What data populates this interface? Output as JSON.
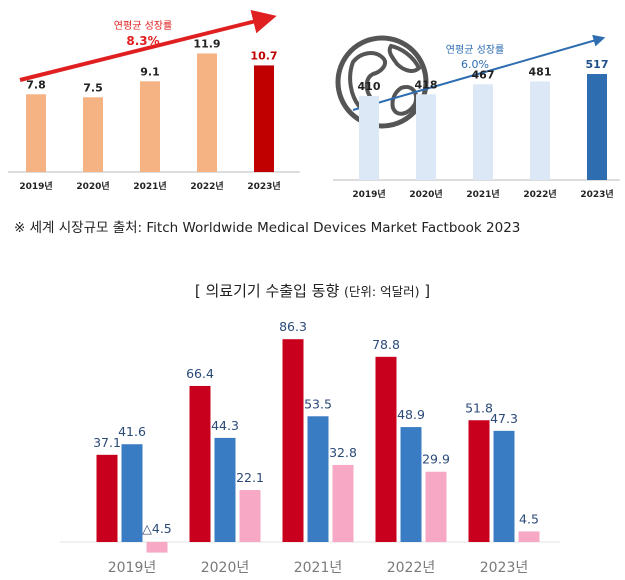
{
  "chart_data": [
    {
      "type": "bar",
      "categories": [
        "2019년",
        "2020년",
        "2021년",
        "2022년",
        "2023년"
      ],
      "values": [
        7.8,
        7.5,
        9.1,
        11.9,
        10.7
      ],
      "value_labels": [
        "7.8",
        "7.5",
        "9.1",
        "11.9",
        "10.7"
      ],
      "ylim": [
        0,
        13
      ],
      "colors": [
        "#f5b283",
        "#f5b283",
        "#f5b283",
        "#f5b283",
        "#c00000"
      ],
      "value_label_colors": [
        "#222222",
        "#222222",
        "#222222",
        "#222222",
        "#c00000"
      ],
      "annotation": {
        "line1": "연평균 성장률",
        "line2": "8.3%",
        "color": "#e02020"
      }
    },
    {
      "type": "bar",
      "categories": [
        "2019년",
        "2020년",
        "2021년",
        "2022년",
        "2023년"
      ],
      "values": [
        410,
        418,
        467,
        481,
        517
      ],
      "value_labels": [
        "410",
        "418",
        "467",
        "481",
        "517"
      ],
      "ylim": [
        0,
        560
      ],
      "colors": [
        "#dce8f6",
        "#dce8f6",
        "#dce8f6",
        "#dce8f6",
        "#2e6db0"
      ],
      "value_label_colors": [
        "#222222",
        "#222222",
        "#222222",
        "#222222",
        "#1f4f8a"
      ],
      "annotation": {
        "line1": "연평균 성장률",
        "line2": "6.0%",
        "color": "#2e6db0"
      },
      "icon": "globe-icon"
    },
    {
      "type": "bar",
      "categories": [
        "2019년",
        "2020년",
        "2021년",
        "2022년",
        "2023년"
      ],
      "ylim": [
        -1.5,
        88
      ],
      "series": [
        {
          "values": [
            37.1,
            66.4,
            86.3,
            78.8,
            51.8
          ],
          "labels": [
            "37.1",
            "66.4",
            "86.3",
            "78.8",
            "51.8"
          ],
          "color": "#c8001e"
        },
        {
          "values": [
            41.6,
            44.3,
            53.5,
            48.9,
            47.3
          ],
          "labels": [
            "41.6",
            "44.3",
            "53.5",
            "48.9",
            "47.3"
          ],
          "color": "#3a7cc4"
        },
        {
          "values": [
            -4.5,
            22.1,
            32.8,
            29.9,
            4.5
          ],
          "labels": [
            "△4.5",
            "22.1",
            "32.8",
            "29.9",
            "4.5"
          ],
          "color": "#f7a8c4"
        }
      ]
    }
  ],
  "source_note": "※ 세계 시장규모 출처: Fitch Worldwide Medical Devices Market Factbook 2023",
  "section": {
    "title": "[ 의료기기 수출입 동향 ",
    "unit": "(단위: 억달러)",
    "close": " ]"
  }
}
